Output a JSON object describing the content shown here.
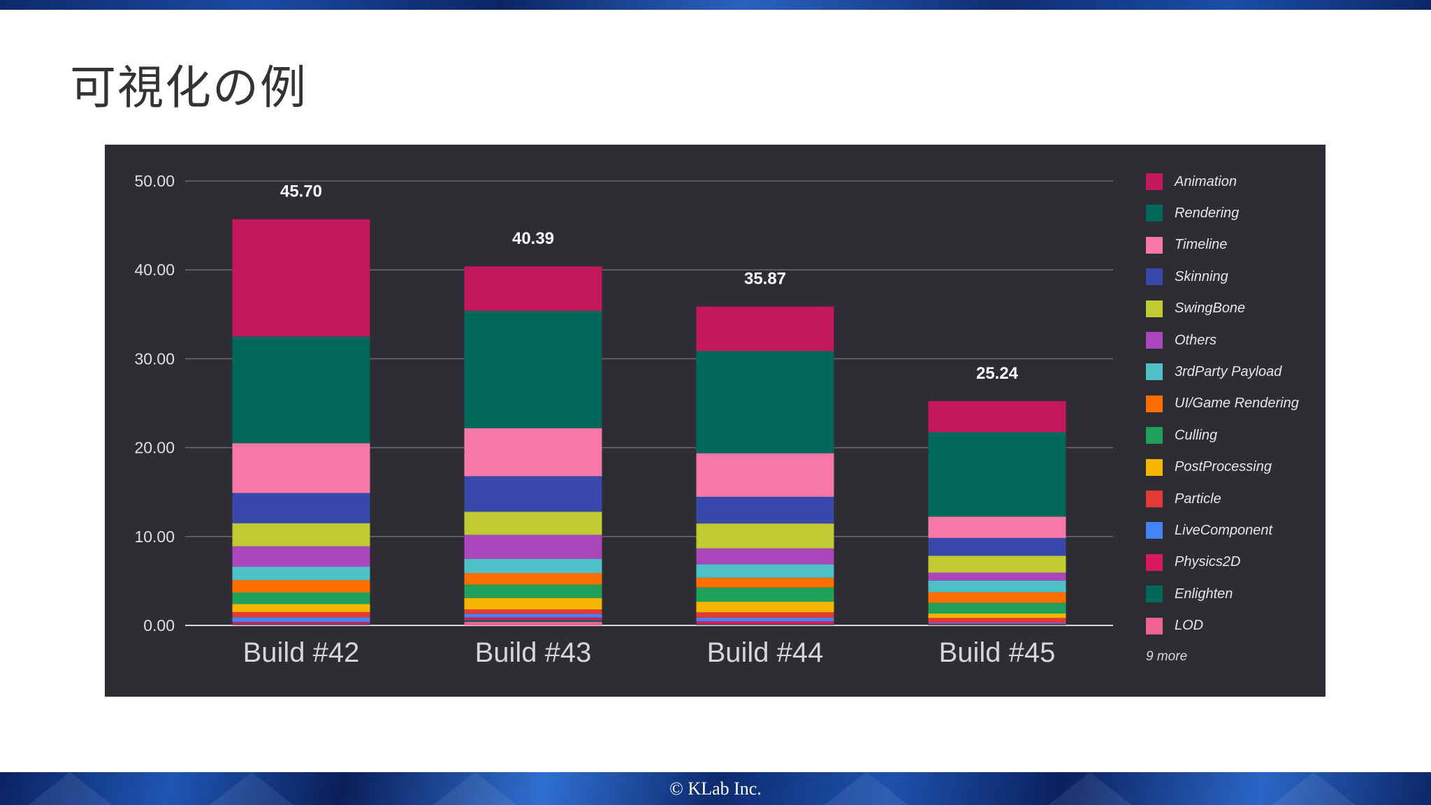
{
  "slide": {
    "title": "可視化の例",
    "footer": "© KLab Inc."
  },
  "colors": {
    "panel_bg": "#2d2d33",
    "grid": "#6a6a72",
    "axis_text": "#e0e0e4",
    "total_text": "#ffffff"
  },
  "chart_data": {
    "type": "bar",
    "stacked": true,
    "title": "",
    "xlabel": "",
    "ylabel": "",
    "ylim": [
      0,
      50
    ],
    "yticks": [
      "0.00",
      "10.00",
      "20.00",
      "30.00",
      "40.00",
      "50.00"
    ],
    "categories": [
      "Build #42",
      "Build #43",
      "Build #44",
      "Build #45"
    ],
    "totals": [
      "45.70",
      "40.39",
      "35.87",
      "25.24"
    ],
    "series": [
      {
        "name": "Animation",
        "color": "#c2185b",
        "values": [
          13.2,
          5.0,
          5.0,
          3.5
        ]
      },
      {
        "name": "Rendering",
        "color": "#00695c",
        "values": [
          12.0,
          13.2,
          11.5,
          9.5
        ]
      },
      {
        "name": "Timeline",
        "color": "#f778a7",
        "values": [
          5.6,
          5.4,
          4.9,
          2.4
        ]
      },
      {
        "name": "Skinning",
        "color": "#3949ab",
        "values": [
          3.4,
          4.0,
          3.0,
          2.0
        ]
      },
      {
        "name": "SwingBone",
        "color": "#c0ca33",
        "values": [
          2.6,
          2.6,
          2.8,
          1.9
        ]
      },
      {
        "name": "Others",
        "color": "#ab47bc",
        "values": [
          2.3,
          2.7,
          1.8,
          0.9
        ]
      },
      {
        "name": "3rdParty Payload",
        "color": "#4dc0c8",
        "values": [
          1.5,
          1.6,
          1.5,
          1.3
        ]
      },
      {
        "name": "UI/Game Rendering",
        "color": "#ff6f00",
        "values": [
          1.4,
          1.3,
          1.1,
          1.2
        ]
      },
      {
        "name": "Culling",
        "color": "#1ea05a",
        "values": [
          1.3,
          1.5,
          1.6,
          1.2
        ]
      },
      {
        "name": "PostProcessing",
        "color": "#f4b400",
        "values": [
          0.9,
          1.3,
          1.2,
          0.5
        ]
      },
      {
        "name": "Particle",
        "color": "#e53935",
        "values": [
          0.6,
          0.5,
          0.6,
          0.5
        ]
      },
      {
        "name": "LiveComponent",
        "color": "#4285f4",
        "values": [
          0.5,
          0.4,
          0.4,
          0.1
        ]
      },
      {
        "name": "Physics2D",
        "color": "#d81b60",
        "values": [
          0.2,
          0.3,
          0.3,
          0.1
        ]
      },
      {
        "name": "Enlighten",
        "color": "#00695c",
        "values": [
          0.1,
          0.2,
          0.1,
          0.1
        ]
      },
      {
        "name": "LOD",
        "color": "#f06292",
        "values": [
          0.1,
          0.39,
          0.07,
          0.04
        ]
      }
    ],
    "legend_position": "right",
    "legend_more": "9 more"
  }
}
